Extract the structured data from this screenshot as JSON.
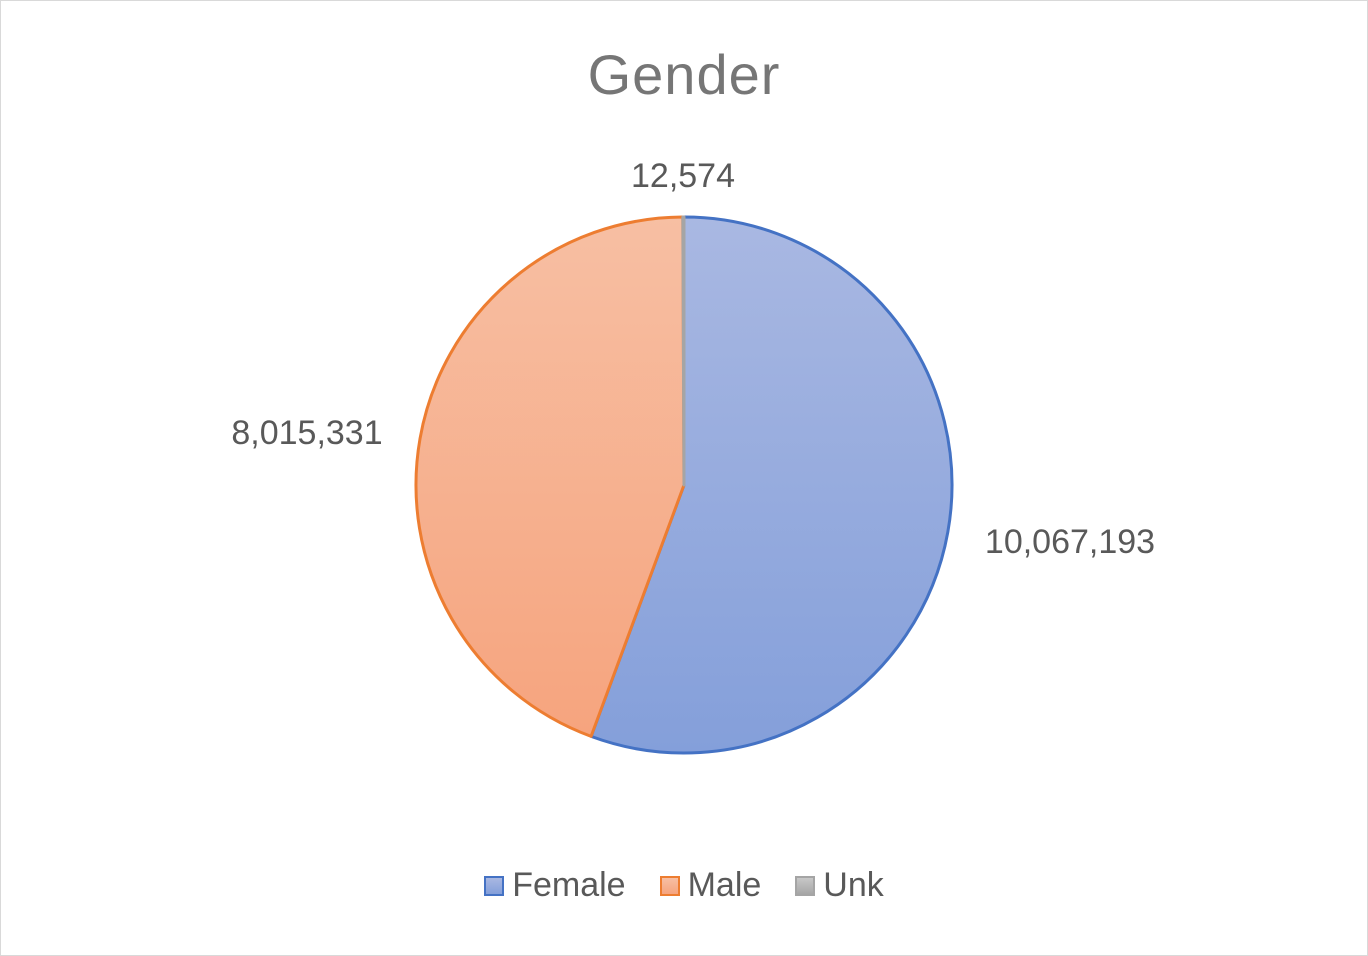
{
  "chart_data": {
    "type": "pie",
    "title": "Gender",
    "categories": [
      "Female",
      "Male",
      "Unk"
    ],
    "values": [
      10067193,
      8015331,
      12574
    ],
    "data_labels": [
      "10,067,193",
      "8,015,331",
      "12,574"
    ],
    "colors": {
      "fill_top": [
        "#a9b8e2",
        "#f7bfa3",
        "#c8c8c8"
      ],
      "fill_bottom": [
        "#849fda",
        "#f6a47e",
        "#a6a6a6"
      ],
      "border": [
        "#4472c4",
        "#ed7d31",
        "#a5a5a5"
      ]
    },
    "legend": {
      "position": "bottom",
      "entries": [
        "Female",
        "Male",
        "Unk"
      ]
    },
    "start_angle": "12 o'clock",
    "direction": "clockwise"
  }
}
